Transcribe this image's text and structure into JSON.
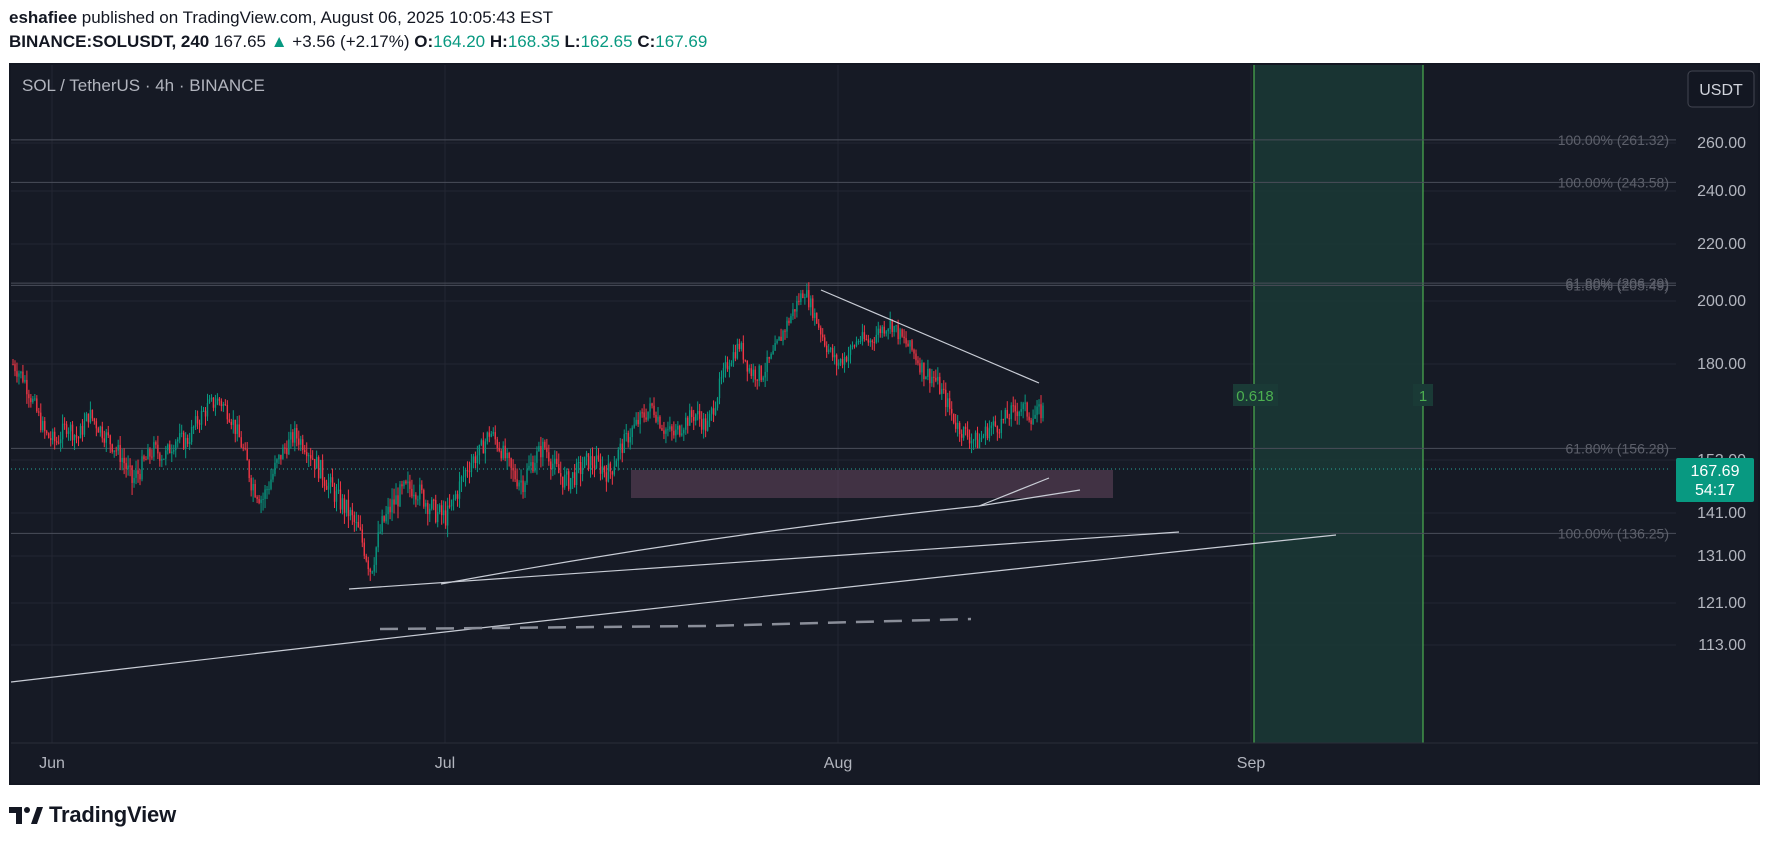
{
  "header": {
    "author": "eshafiee",
    "published_text": " published on TradingView.com, August 06, 2025 10:05:43 EST",
    "symbol_line": "BINANCE:SOLUSDT, 240",
    "price": "167.65",
    "change_arrow": "▲",
    "change": "+3.56 (+2.17%)",
    "open_label": "O:",
    "open": "164.20",
    "high_label": "H:",
    "high": "168.35",
    "low_label": "L:",
    "low": "162.65",
    "close_label": "C:",
    "close": "167.69"
  },
  "chart_data": {
    "type": "candlestick",
    "title": "SOL / TetherUS · 4h · BINANCE",
    "currency_button": "USDT",
    "x_ticks": [
      "Jun",
      "Jul",
      "Aug",
      "Sep"
    ],
    "y_ticks": [
      "260.00",
      "240.00",
      "220.00",
      "200.00",
      "180.00",
      "167.69",
      "153.00",
      "141.00",
      "131.00",
      "121.00",
      "113.00"
    ],
    "last_price": "167.69",
    "countdown": "54:17",
    "fib_levels": [
      {
        "label": "100.00% (261.32)",
        "value": 261.32
      },
      {
        "label": "100.00% (243.58)",
        "value": 243.58
      },
      {
        "label": "61.80% (206.29)",
        "value": 206.29
      },
      {
        "label": "61.80% (205.49)",
        "value": 205.49
      },
      {
        "label": "61.80% (156.28)",
        "value": 156.28
      },
      {
        "label": "100.00% (136.25)",
        "value": 136.25
      }
    ],
    "time_zone_labels": [
      "0.618",
      "1"
    ],
    "series": [
      {
        "name": "SOLUSDT 4h close (approx)",
        "values": [
          180,
          176,
          168,
          160,
          158,
          163,
          159,
          166,
          162,
          158,
          154,
          148,
          152,
          156,
          154,
          159,
          158,
          164,
          168,
          170,
          166,
          158,
          148,
          144,
          150,
          156,
          160,
          157,
          152,
          148,
          144,
          141,
          136,
          128,
          138,
          143,
          146,
          147,
          144,
          141,
          140,
          146,
          152,
          155,
          161,
          156,
          150,
          148,
          153,
          157,
          151,
          148,
          150,
          153,
          152,
          150,
          156,
          161,
          165,
          168,
          162,
          160,
          164,
          166,
          162,
          172,
          181,
          186,
          178,
          177,
          182,
          190,
          197,
          204,
          195,
          186,
          180,
          183,
          188,
          187,
          191,
          193,
          188,
          184,
          178,
          176,
          170,
          163,
          160,
          158,
          162,
          163,
          166,
          168,
          165,
          167
        ]
      }
    ]
  },
  "footer": {
    "brand": "TradingView"
  },
  "colors": {
    "up": "#089981",
    "down": "#f23645",
    "background": "#161a25",
    "accent_zone": "#1a3a36"
  }
}
